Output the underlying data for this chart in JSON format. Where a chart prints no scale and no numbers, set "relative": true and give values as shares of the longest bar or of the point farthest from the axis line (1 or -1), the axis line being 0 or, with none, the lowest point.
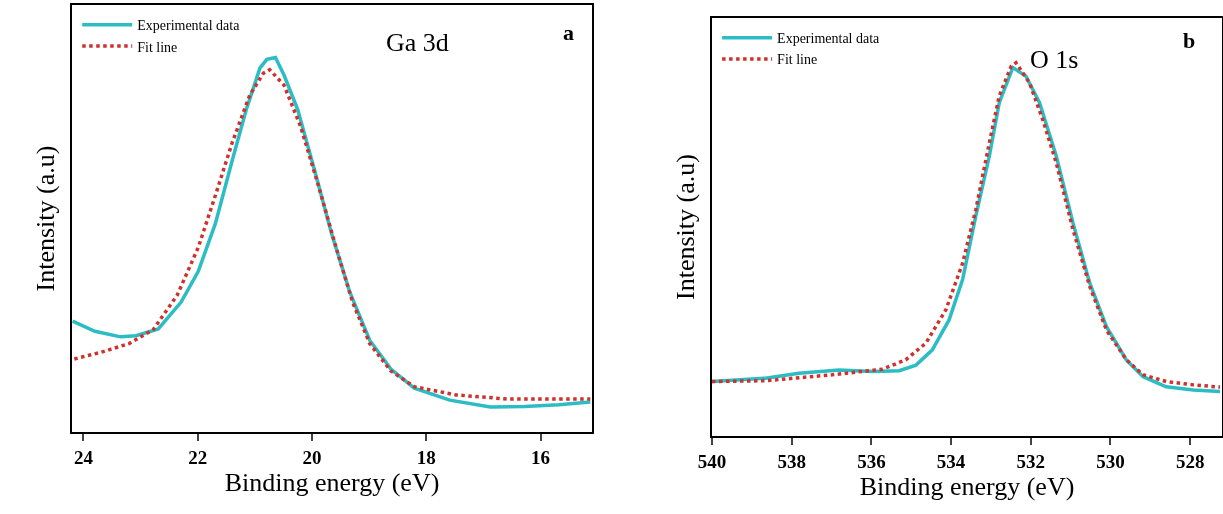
{
  "chart_data": [
    {
      "type": "line",
      "relative": true,
      "xlabel": "Binding energy (eV)",
      "ylabel": "Intensity (a.u)",
      "xlim": [
        24.2,
        15.1
      ],
      "xticks": [
        24,
        22,
        20,
        18,
        16
      ],
      "legend": "top left",
      "grid": false,
      "annotations": [
        "Ga 3d",
        "a"
      ],
      "series": [
        {
          "name": "Experimental data",
          "color": "#2bbcc4",
          "line_style": "solid",
          "x": [
            24.19,
            23.8,
            23.35,
            23.08,
            22.69,
            22.29,
            21.99,
            21.69,
            21.4,
            21.15,
            20.91,
            20.79,
            20.64,
            20.49,
            20.25,
            19.95,
            19.66,
            19.34,
            18.99,
            18.62,
            18.21,
            17.59,
            16.88,
            16.28,
            15.68,
            15.13
          ],
          "values": [
            0.296,
            0.269,
            0.254,
            0.257,
            0.275,
            0.347,
            0.429,
            0.557,
            0.723,
            0.861,
            0.972,
            0.995,
            1.0,
            0.953,
            0.861,
            0.696,
            0.531,
            0.374,
            0.245,
            0.168,
            0.117,
            0.085,
            0.067,
            0.068,
            0.073,
            0.08
          ]
        },
        {
          "name": "Fit line",
          "color": "#d0312d",
          "line_style": "dotted",
          "x": [
            24.16,
            23.69,
            23.2,
            22.78,
            22.36,
            21.99,
            21.69,
            21.4,
            21.09,
            20.85,
            20.74,
            20.49,
            20.2,
            19.89,
            19.58,
            19.29,
            18.99,
            18.62,
            18.21,
            17.48,
            16.58,
            15.13
          ],
          "values": [
            0.195,
            0.213,
            0.236,
            0.273,
            0.365,
            0.493,
            0.632,
            0.771,
            0.899,
            0.958,
            0.967,
            0.926,
            0.816,
            0.659,
            0.493,
            0.347,
            0.236,
            0.163,
            0.121,
            0.099,
            0.088,
            0.088
          ]
        }
      ]
    },
    {
      "type": "line",
      "relative": true,
      "xlabel": "Binding energy (eV)",
      "ylabel": "Intensity (a.u)",
      "xlim": [
        540,
        527.2
      ],
      "xticks": [
        540,
        538,
        536,
        534,
        532,
        530,
        528
      ],
      "legend": "top left",
      "grid": false,
      "annotations": [
        "O 1s",
        "b"
      ],
      "series": [
        {
          "name": "Experimental data",
          "color": "#2bbcc4",
          "line_style": "solid",
          "x": [
            540,
            538.66,
            537.82,
            536.81,
            535.97,
            535.3,
            534.88,
            534.47,
            534.05,
            533.71,
            533.38,
            533.04,
            532.79,
            532.45,
            532.12,
            531.78,
            531.36,
            530.94,
            530.52,
            530.1,
            529.6,
            529.18,
            528.6,
            527.92,
            527.25
          ],
          "values": [
            0.146,
            0.155,
            0.168,
            0.177,
            0.173,
            0.175,
            0.19,
            0.231,
            0.311,
            0.419,
            0.589,
            0.75,
            0.893,
            0.987,
            0.964,
            0.893,
            0.75,
            0.571,
            0.41,
            0.293,
            0.204,
            0.159,
            0.132,
            0.123,
            0.119
          ]
        },
        {
          "name": "Fit line",
          "color": "#d0312d",
          "line_style": "dotted",
          "x": [
            540,
            538.66,
            536.98,
            535.72,
            535.14,
            534.63,
            534.13,
            533.71,
            533.38,
            533.04,
            532.79,
            532.49,
            532.37,
            532.03,
            531.7,
            531.36,
            530.94,
            530.52,
            530.1,
            529.6,
            529.18,
            528.6,
            527.92,
            527.25
          ],
          "values": [
            0.146,
            0.148,
            0.164,
            0.179,
            0.204,
            0.249,
            0.338,
            0.463,
            0.606,
            0.785,
            0.911,
            0.991,
            1.0,
            0.946,
            0.848,
            0.732,
            0.553,
            0.401,
            0.284,
            0.204,
            0.164,
            0.146,
            0.137,
            0.131
          ]
        }
      ]
    }
  ]
}
